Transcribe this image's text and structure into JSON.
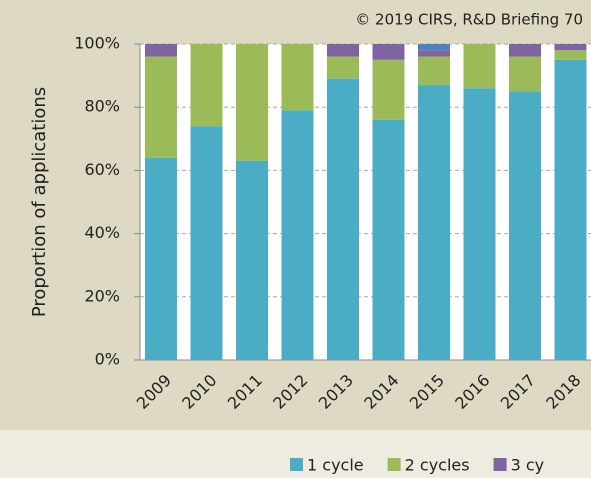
{
  "chart_data": {
    "type": "stacked_bar",
    "note_text": "© 2019 CIRS, R&D Briefing 70",
    "y_label": "Proportion of applications",
    "categories": [
      "2009",
      "2010",
      "2011",
      "2012",
      "2013",
      "2014",
      "2015",
      "2016",
      "2017",
      "2018"
    ],
    "series": [
      {
        "name": "1 cycle",
        "color": "#4bacc6",
        "values": [
          64,
          74,
          63,
          79,
          89,
          76,
          87,
          86,
          85,
          95
        ]
      },
      {
        "name": "2 cycles",
        "color": "#9bbb59",
        "values": [
          32,
          26,
          37,
          21,
          7,
          19,
          9,
          14,
          11,
          3
        ]
      },
      {
        "name": "3 cy",
        "color": "#8064a2",
        "values": [
          4,
          0,
          0,
          0,
          4,
          5,
          2,
          0,
          4,
          2
        ]
      },
      {
        "color": "#4f81bd",
        "values": [
          0,
          0,
          0,
          0,
          0,
          0,
          2,
          0,
          0,
          0
        ]
      }
    ],
    "ylim": [
      0,
      100
    ],
    "yticks": [
      {
        "value": 0,
        "label": "0%"
      },
      {
        "value": 20,
        "label": "20%"
      },
      {
        "value": 40,
        "label": "40%"
      },
      {
        "value": 60,
        "label": "60%"
      },
      {
        "value": 80,
        "label": "80%"
      },
      {
        "value": 100,
        "label": "100%"
      }
    ],
    "grid": true
  }
}
